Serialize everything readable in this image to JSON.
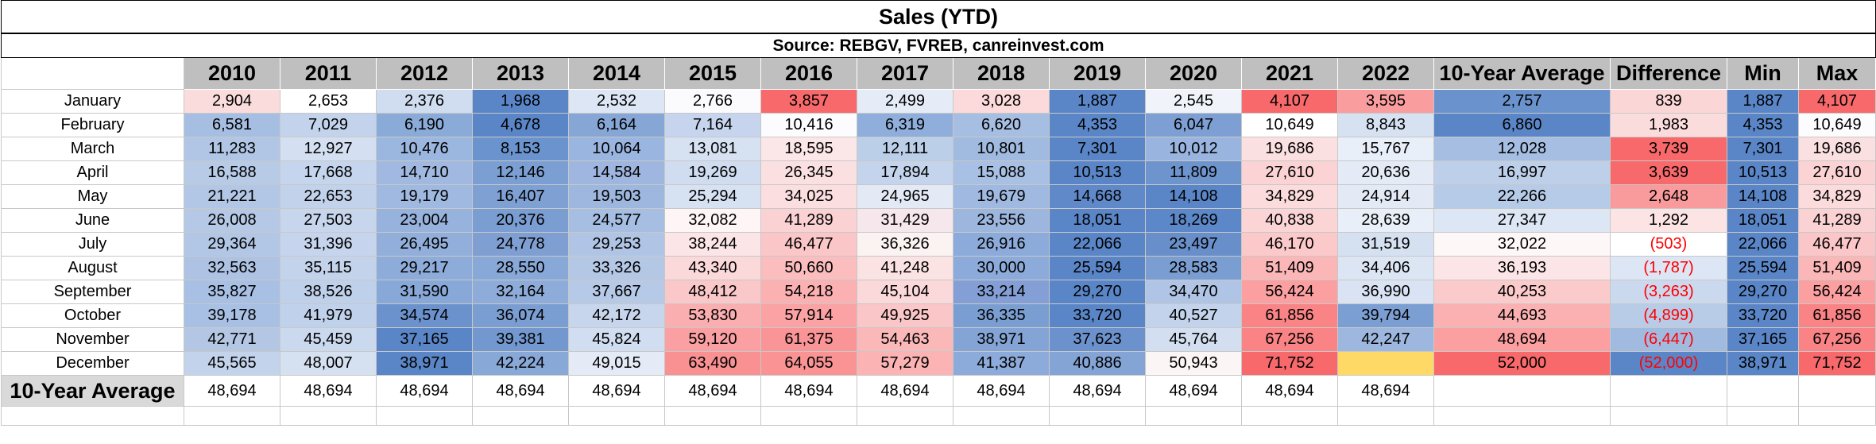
{
  "title": "Sales (YTD)",
  "source": "Source: REBGV, FVREB, canreinvest.com",
  "headers": [
    "2010",
    "2011",
    "2012",
    "2013",
    "2014",
    "2015",
    "2016",
    "2017",
    "2018",
    "2019",
    "2020",
    "2021",
    "2022",
    "10-Year Average",
    "Difference",
    "Min",
    "Max"
  ],
  "months": [
    "January",
    "February",
    "March",
    "April",
    "May",
    "June",
    "July",
    "August",
    "September",
    "October",
    "November",
    "December"
  ],
  "rows": [
    [
      "2,904",
      "2,653",
      "2,376",
      "1,968",
      "2,532",
      "2,766",
      "3,857",
      "2,499",
      "3,028",
      "1,887",
      "2,545",
      "4,107",
      "3,595",
      "2,757",
      "839",
      "1,887",
      "4,107"
    ],
    [
      "6,581",
      "7,029",
      "6,190",
      "4,678",
      "6,164",
      "7,164",
      "10,416",
      "6,319",
      "6,620",
      "4,353",
      "6,047",
      "10,649",
      "8,843",
      "6,860",
      "1,983",
      "4,353",
      "10,649"
    ],
    [
      "11,283",
      "12,927",
      "10,476",
      "8,153",
      "10,064",
      "13,081",
      "18,595",
      "12,111",
      "10,801",
      "7,301",
      "10,012",
      "19,686",
      "15,767",
      "12,028",
      "3,739",
      "7,301",
      "19,686"
    ],
    [
      "16,588",
      "17,668",
      "14,710",
      "12,146",
      "14,584",
      "19,269",
      "26,345",
      "17,894",
      "15,088",
      "10,513",
      "11,809",
      "27,610",
      "20,636",
      "16,997",
      "3,639",
      "10,513",
      "27,610"
    ],
    [
      "21,221",
      "22,653",
      "19,179",
      "16,407",
      "19,503",
      "25,294",
      "34,025",
      "24,965",
      "19,679",
      "14,668",
      "14,108",
      "34,829",
      "24,914",
      "22,266",
      "2,648",
      "14,108",
      "34,829"
    ],
    [
      "26,008",
      "27,503",
      "23,004",
      "20,376",
      "24,577",
      "32,082",
      "41,289",
      "31,429",
      "23,556",
      "18,051",
      "18,269",
      "40,838",
      "28,639",
      "27,347",
      "1,292",
      "18,051",
      "41,289"
    ],
    [
      "29,364",
      "31,396",
      "26,495",
      "24,778",
      "29,253",
      "38,244",
      "46,477",
      "36,326",
      "26,916",
      "22,066",
      "23,497",
      "46,170",
      "31,519",
      "32,022",
      "(503)",
      "22,066",
      "46,477"
    ],
    [
      "32,563",
      "35,115",
      "29,217",
      "28,550",
      "33,326",
      "43,340",
      "50,660",
      "41,248",
      "30,000",
      "25,594",
      "28,583",
      "51,409",
      "34,406",
      "36,193",
      "(1,787)",
      "25,594",
      "51,409"
    ],
    [
      "35,827",
      "38,526",
      "31,590",
      "32,164",
      "37,667",
      "48,412",
      "54,218",
      "45,104",
      "33,214",
      "29,270",
      "34,470",
      "56,424",
      "36,990",
      "40,253",
      "(3,263)",
      "29,270",
      "56,424"
    ],
    [
      "39,178",
      "41,979",
      "34,574",
      "36,074",
      "42,172",
      "53,830",
      "57,914",
      "49,925",
      "36,335",
      "33,720",
      "40,527",
      "61,856",
      "39,794",
      "44,693",
      "(4,899)",
      "33,720",
      "61,856"
    ],
    [
      "42,771",
      "45,459",
      "37,165",
      "39,381",
      "45,824",
      "59,120",
      "61,375",
      "54,463",
      "38,971",
      "37,623",
      "45,764",
      "67,256",
      "42,247",
      "48,694",
      "(6,447)",
      "37,165",
      "67,256"
    ],
    [
      "45,565",
      "48,007",
      "38,971",
      "42,224",
      "49,015",
      "63,490",
      "64,055",
      "57,279",
      "41,387",
      "40,886",
      "50,943",
      "71,752",
      "",
      "52,000",
      "(52,000)",
      "38,971",
      "71,752"
    ]
  ],
  "fills": [
    [
      "#fbdcdd",
      "#ffffff",
      "#d0dcef",
      "#5a86c8",
      "#dde6f4",
      "#fbfbfe",
      "#f8696b",
      "#e5ecf7",
      "#fcd9da",
      "#5a86c8",
      "#f0f4fa",
      "#f8696b",
      "#f99d9f",
      "#6a92cc",
      "#fbd6d7",
      "#5a86c8",
      "#f8696b"
    ],
    [
      "#a6bee2",
      "#c3d3ec",
      "#8aaad8",
      "#5a86c8",
      "#86a6d6",
      "#c6d5ed",
      "#fcfcff",
      "#8faedb",
      "#a6bee2",
      "#5a86c8",
      "#7d9fd3",
      "#ffffff",
      "#d6e1f1",
      "#5a86c8",
      "#fbdcdd",
      "#5a86c8",
      "#fcfcff"
    ],
    [
      "#b1c6e5",
      "#d4e0f1",
      "#9bb6df",
      "#6b93cd",
      "#9ab5df",
      "#d6e1f2",
      "#fce7e8",
      "#bccfe9",
      "#a1badf",
      "#5a86c8",
      "#99b4de",
      "#fbe0e1",
      "#e9eff8",
      "#a5bee2",
      "#f8696b",
      "#5a86c8",
      "#fbe0e1"
    ],
    [
      "#b7cbe7",
      "#c5d5ed",
      "#a1b9e0",
      "#7c9fd3",
      "#9fb7e0",
      "#d0ddf0",
      "#fbe0e1",
      "#c4d4ec",
      "#a8c0e3",
      "#5a86c8",
      "#6e94cd",
      "#fbd3d4",
      "#e4ebf6",
      "#bdcfe9",
      "#f8696b",
      "#5a86c8",
      "#fbd3d4"
    ],
    [
      "#b2c7e5",
      "#c2d2eb",
      "#a0b9e0",
      "#7ea0d3",
      "#9eb7df",
      "#d6e1f2",
      "#fbdedf",
      "#e3eaf6",
      "#a0b9e0",
      "#6089c9",
      "#5a86c8",
      "#fbdbdc",
      "#e3eaf6",
      "#b6cbe7",
      "#f99a9c",
      "#5a86c8",
      "#fbdbdc"
    ],
    [
      "#b5c9e6",
      "#c7d6ed",
      "#97b2dd",
      "#7a9dd2",
      "#a5bee2",
      "#fef6f6",
      "#fbd2d3",
      "#f6e7ec",
      "#9db6de",
      "#5a86c8",
      "#5c87c8",
      "#fbd5d6",
      "#e9eff8",
      "#dde6f4",
      "#fce3e4",
      "#5a86c8",
      "#fbd2d3"
    ],
    [
      "#b2c6e5",
      "#c6d5ed",
      "#92afdc",
      "#7f9fd3",
      "#b0c5e5",
      "#fbe5e6",
      "#fbc6c7",
      "#fbf2f2",
      "#8dabda",
      "#5a86c8",
      "#698fcb",
      "#fbc9ca",
      "#d5e0f1",
      "#fef7f7",
      "#ffffff",
      "#5a86c8",
      "#fbc6c7"
    ],
    [
      "#aec3e4",
      "#c3d3ec",
      "#8eacda",
      "#88a8d8",
      "#b4c8e6",
      "#fbd8d9",
      "#fbbdbe",
      "#fbe2e3",
      "#8dabda",
      "#5a86c8",
      "#7a9dd2",
      "#fbb6b7",
      "#dce5f3",
      "#fbe5e6",
      "#dde6f4",
      "#5a86c8",
      "#fbb6b7"
    ],
    [
      "#a8c0e3",
      "#bfd0ea",
      "#88a8d8",
      "#8eacda",
      "#b6cae7",
      "#fbc8c9",
      "#fbb0b1",
      "#fbd8d9",
      "#839fd5",
      "#5a86c8",
      "#b0c5e5",
      "#fb9fa1",
      "#dae3f3",
      "#fbcacb",
      "#cbd9ef",
      "#5a86c8",
      "#fb9fa1"
    ],
    [
      "#a8c0e3",
      "#c0d1eb",
      "#6b92cd",
      "#7b9ed2",
      "#c7d6ed",
      "#fbaeb0",
      "#fba2a4",
      "#fbc6c7",
      "#7b9ed2",
      "#5a86c8",
      "#c3d3ec",
      "#f98385",
      "#7c9fd3",
      "#fbb1b2",
      "#b8cce8",
      "#5a86c8",
      "#f98385"
    ],
    [
      "#b3c7e5",
      "#cbd9ef",
      "#5a86c8",
      "#7298cf",
      "#d1ddf0",
      "#fba0a2",
      "#fa9597",
      "#fbb8b9",
      "#84a4d6",
      "#6c92cd",
      "#d3dff1",
      "#f98385",
      "#9eb7df",
      "#fb9fa1",
      "#a1baE0",
      "#5a86c8",
      "#f98385"
    ],
    [
      "#c3d3ec",
      "#d5e0f1",
      "#5a86c8",
      "#88a8d8",
      "#e4ebf6",
      "#f99193",
      "#f99394",
      "#fbb3b4",
      "#8dabda",
      "#84a4d6",
      "#fbf5f6",
      "#f8696b",
      "#ffd966",
      "#f8696b",
      "#5a86c8",
      "#5a86c8",
      "#f8696b"
    ]
  ],
  "avg_label": "10-Year Average",
  "avg_values": [
    "48,694",
    "48,694",
    "48,694",
    "48,694",
    "48,694",
    "48,694",
    "48,694",
    "48,694",
    "48,694",
    "48,694",
    "48,694",
    "48,694",
    "48,694"
  ]
}
